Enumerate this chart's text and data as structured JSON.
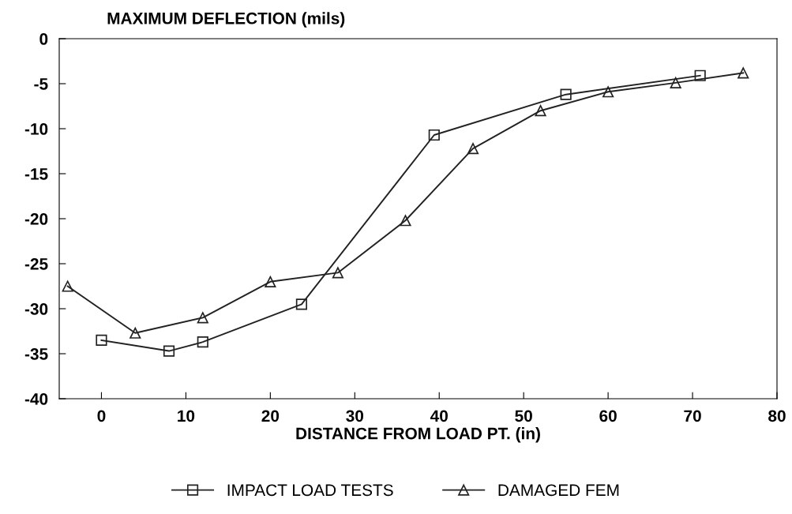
{
  "chart_data": {
    "type": "line",
    "ylabel": "MAXIMUM DEFLECTION (mils)",
    "xlabel": "DISTANCE FROM LOAD PT. (in)",
    "xlim": [
      -5,
      80
    ],
    "xticks": [
      0,
      10,
      20,
      30,
      40,
      50,
      60,
      70,
      80
    ],
    "ylim": [
      -40,
      0
    ],
    "yticks": [
      -40,
      -35,
      -30,
      -25,
      -20,
      -15,
      -10,
      -5,
      0
    ],
    "grid": false,
    "legend": "bottom",
    "series": [
      {
        "name": "IMPACT LOAD TESTS",
        "color": "#222222",
        "marker": "square",
        "x": [
          0,
          8,
          12,
          23.7,
          39.4,
          55,
          70.9
        ],
        "values": [
          -33.5,
          -34.7,
          -33.7,
          -29.5,
          -10.7,
          -6.2,
          -4.1
        ]
      },
      {
        "name": "DAMAGED FEM",
        "color": "#222222",
        "marker": "triangle",
        "x": [
          -4,
          4,
          12,
          20,
          28,
          36,
          44,
          52,
          60,
          68,
          76
        ],
        "values": [
          -27.5,
          -32.7,
          -31,
          -27,
          -26,
          -20.2,
          -12.2,
          -8,
          -5.9,
          -4.9,
          -3.8
        ]
      }
    ]
  }
}
